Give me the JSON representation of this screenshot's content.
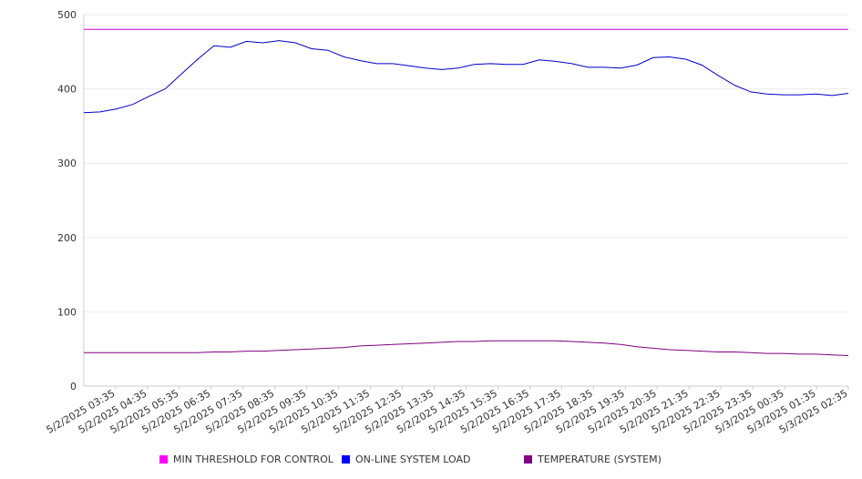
{
  "chart_data": {
    "type": "line",
    "title": "",
    "xlabel": "",
    "ylabel": "",
    "ylim": [
      0,
      500
    ],
    "yticks": [
      0,
      100,
      200,
      300,
      400,
      500
    ],
    "xticks": [
      "5/2/2025 03:35",
      "5/2/2025 04:35",
      "5/2/2025 05:35",
      "5/2/2025 06:35",
      "5/2/2025 07:35",
      "5/2/2025 08:35",
      "5/2/2025 09:35",
      "5/2/2025 10:35",
      "5/2/2025 11:35",
      "5/2/2025 12:35",
      "5/2/2025 13:35",
      "5/2/2025 14:35",
      "5/2/2025 15:35",
      "5/2/2025 16:35",
      "5/2/2025 17:35",
      "5/2/2025 18:35",
      "5/2/2025 19:35",
      "5/2/2025 20:35",
      "5/2/2025 21:35",
      "5/2/2025 22:35",
      "5/2/2025 23:35",
      "5/3/2025 00:35",
      "5/3/2025 01:35",
      "5/3/2025 02:35"
    ],
    "x": [
      "5/2/2025 03:35",
      "5/2/2025 04:05",
      "5/2/2025 04:35",
      "5/2/2025 05:05",
      "5/2/2025 05:35",
      "5/2/2025 06:05",
      "5/2/2025 06:35",
      "5/2/2025 07:05",
      "5/2/2025 07:35",
      "5/2/2025 08:05",
      "5/2/2025 08:35",
      "5/2/2025 09:05",
      "5/2/2025 09:35",
      "5/2/2025 10:05",
      "5/2/2025 10:35",
      "5/2/2025 11:05",
      "5/2/2025 11:35",
      "5/2/2025 12:05",
      "5/2/2025 12:35",
      "5/2/2025 13:05",
      "5/2/2025 13:35",
      "5/2/2025 14:05",
      "5/2/2025 14:35",
      "5/2/2025 15:05",
      "5/2/2025 15:35",
      "5/2/2025 16:05",
      "5/2/2025 16:35",
      "5/2/2025 17:05",
      "5/2/2025 17:35",
      "5/2/2025 18:05",
      "5/2/2025 18:35",
      "5/2/2025 19:05",
      "5/2/2025 19:35",
      "5/2/2025 20:05",
      "5/2/2025 20:35",
      "5/2/2025 21:05",
      "5/2/2025 21:35",
      "5/2/2025 22:05",
      "5/2/2025 22:35",
      "5/2/2025 23:05",
      "5/2/2025 23:35",
      "5/3/2025 00:05",
      "5/3/2025 00:35",
      "5/3/2025 01:05",
      "5/3/2025 01:35",
      "5/3/2025 02:05",
      "5/3/2025 02:35",
      "5/3/2025 03:05"
    ],
    "series": [
      {
        "name": "MIN THRESHOLD FOR CONTROL",
        "color": "#cc00cc",
        "legend_color": "#ff00ff",
        "values": [
          480,
          480,
          480,
          480,
          480,
          480,
          480,
          480,
          480,
          480,
          480,
          480,
          480,
          480,
          480,
          480,
          480,
          480,
          480,
          480,
          480,
          480,
          480,
          480,
          480,
          480,
          480,
          480,
          480,
          480,
          480,
          480,
          480,
          480,
          480,
          480,
          480,
          480,
          480,
          480,
          480,
          480,
          480,
          480,
          480,
          480,
          480,
          480
        ]
      },
      {
        "name": "ON-LINE SYSTEM LOAD",
        "color": "#0000cc",
        "legend_color": "#0000ff",
        "values": [
          368,
          369,
          373,
          379,
          390,
          400,
          420,
          440,
          458,
          456,
          464,
          462,
          465,
          462,
          454,
          452,
          443,
          438,
          434,
          434,
          431,
          428,
          426,
          428,
          433,
          434,
          433,
          433,
          439,
          437,
          434,
          429,
          429,
          428,
          432,
          442,
          443,
          440,
          432,
          418,
          405,
          396,
          393,
          392,
          392,
          393,
          391,
          394
        ]
      },
      {
        "name": "TEMPERATURE (SYSTEM)",
        "color": "#800080",
        "legend_color": "#800080",
        "values": [
          45,
          45,
          45,
          45,
          45,
          45,
          45,
          45,
          46,
          46,
          47,
          47,
          48,
          49,
          50,
          51,
          52,
          54,
          55,
          56,
          57,
          58,
          59,
          60,
          60,
          61,
          61,
          61,
          61,
          61,
          60,
          59,
          58,
          56,
          53,
          51,
          49,
          48,
          47,
          46,
          46,
          45,
          44,
          44,
          43,
          43,
          42,
          41
        ]
      }
    ],
    "grid": true,
    "legend_position": "bottom"
  }
}
